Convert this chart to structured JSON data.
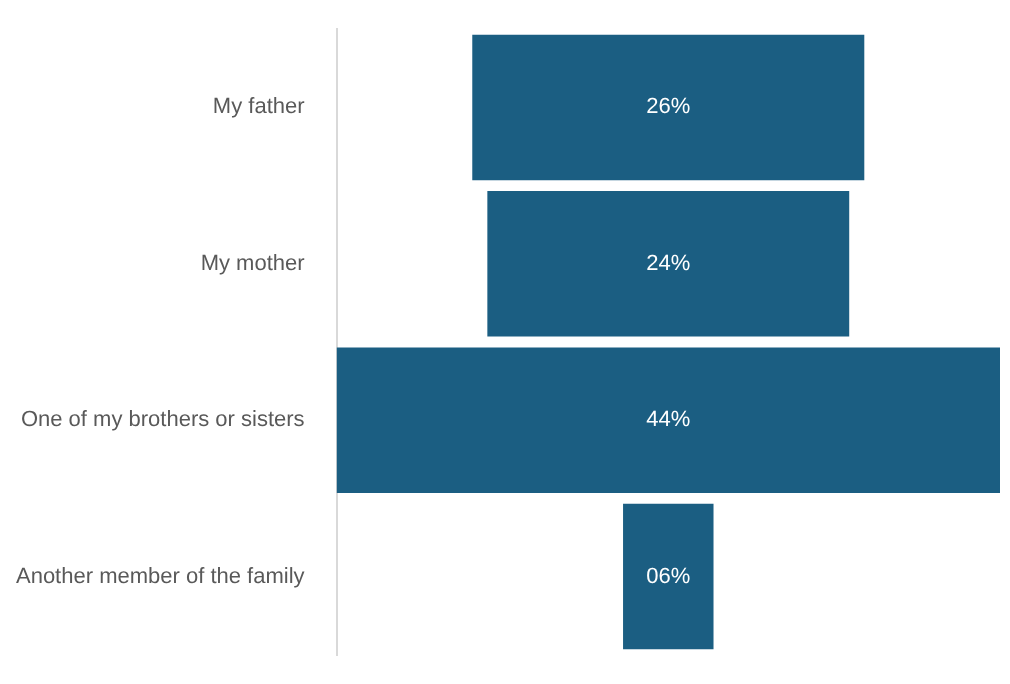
{
  "chart_data": {
    "type": "other",
    "categories": [
      "My father",
      "My mother",
      "One of my brothers or sisters",
      "Another member of the family"
    ],
    "values": [
      26,
      24,
      44,
      6
    ],
    "value_labels": [
      "26%",
      "24%",
      "44%",
      "06%"
    ],
    "color": "#1b5e82"
  }
}
